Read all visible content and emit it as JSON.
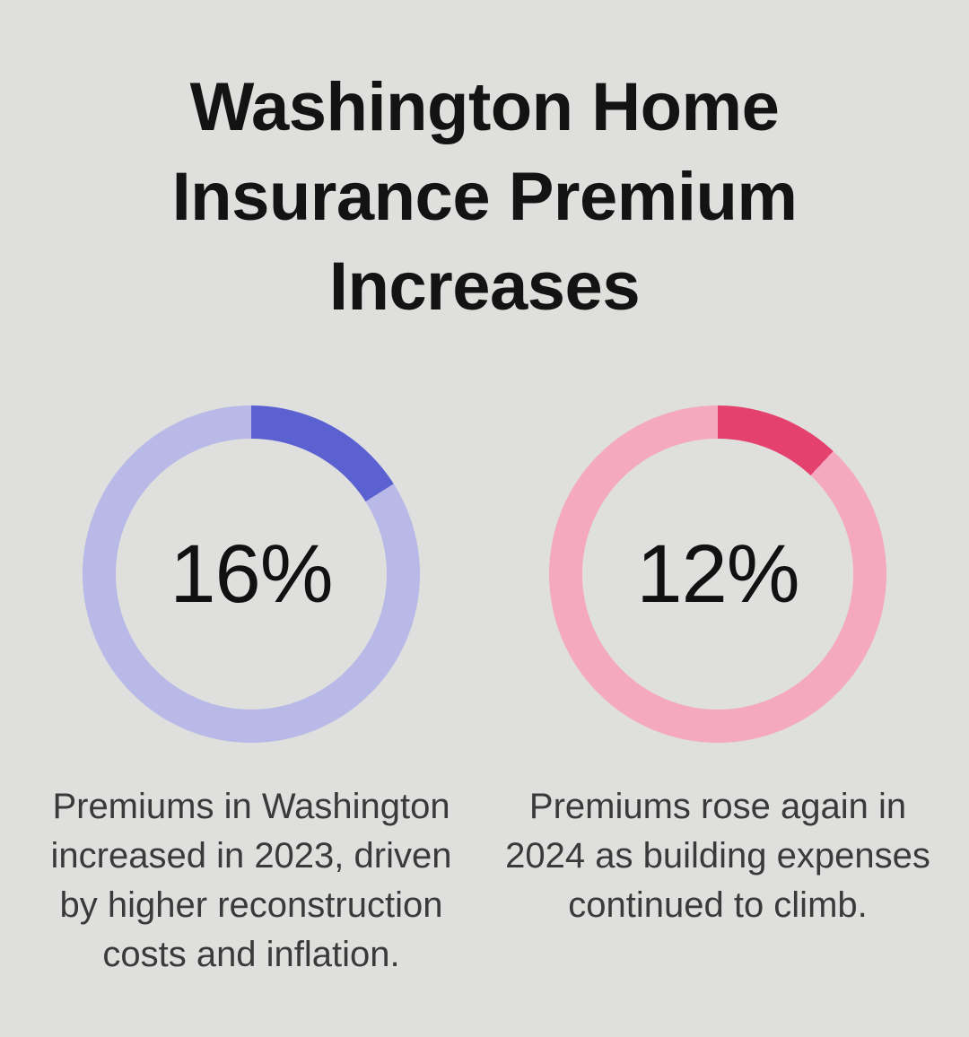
{
  "page": {
    "background": "#dfe0de"
  },
  "title": {
    "full_text": "Washington Home Insurance Premium Increases",
    "lines": [
      "Washington Home",
      "Insurance Premium",
      "Increases"
    ],
    "color": "#131313"
  },
  "text_colors": {
    "percent_label": "#111111",
    "caption": "#3a3a3a"
  },
  "chart_data": [
    {
      "type": "pie",
      "subtype": "donut",
      "name": "washington-premium-increase-2023",
      "value_percent": 16,
      "remainder_percent": 84,
      "center_label": "16%",
      "segment_color": "#5c61d2",
      "track_color": "#b8b9e6",
      "start_angle_deg": 0,
      "direction": "clockwise",
      "legend": "none",
      "caption": "Premiums in Washington increased in 2023, driven by higher reconstruction costs and inflation."
    },
    {
      "type": "pie",
      "subtype": "donut",
      "name": "washington-premium-increase-2024",
      "value_percent": 12,
      "remainder_percent": 88,
      "center_label": "12%",
      "segment_color": "#e4416e",
      "track_color": "#f4a9c0",
      "start_angle_deg": 0,
      "direction": "clockwise",
      "legend": "none",
      "caption": "Premiums rose again in 2024 as building expenses continued to climb."
    }
  ]
}
